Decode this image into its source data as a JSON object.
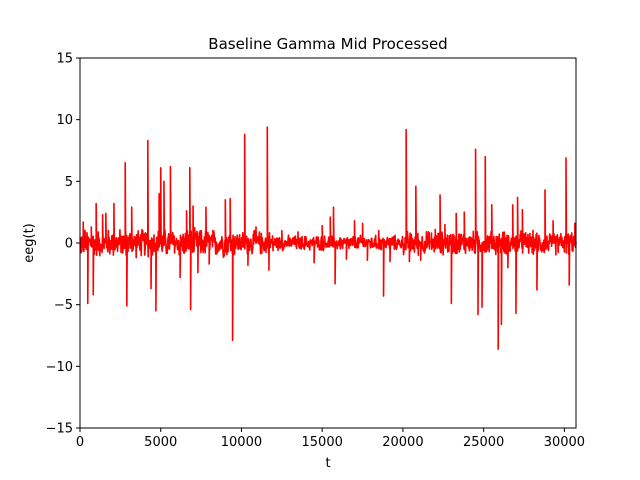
{
  "chart_data": {
    "type": "line",
    "title": "Baseline Gamma Mid Processed",
    "xlabel": "t",
    "ylabel": "eeg(t)",
    "xlim": [
      0,
      30720
    ],
    "ylim": [
      -15,
      15
    ],
    "xticks": [
      0,
      5000,
      10000,
      15000,
      20000,
      25000,
      30000
    ],
    "yticks": [
      -15,
      -10,
      -5,
      0,
      5,
      10,
      15
    ],
    "xtick_labels": [
      "0",
      "5000",
      "10000",
      "15000",
      "20000",
      "25000",
      "30000"
    ],
    "ytick_labels": [
      "−15",
      "−10",
      "−5",
      "0",
      "5",
      "10",
      "15"
    ],
    "grid": false,
    "series": [
      {
        "color": "#ff0000",
        "noise_amplitude_per_region": [
          {
            "from": 0,
            "to": 9600,
            "amp": 1.3
          },
          {
            "from": 9600,
            "to": 12000,
            "amp": 1.1
          },
          {
            "from": 12000,
            "to": 20000,
            "amp": 0.7
          },
          {
            "from": 20000,
            "to": 30720,
            "amp": 1.1
          }
        ],
        "spikes": [
          {
            "x": 200,
            "y": 1.7
          },
          {
            "x": 480,
            "y": -4.9
          },
          {
            "x": 700,
            "y": 1.3
          },
          {
            "x": 820,
            "y": -4.2
          },
          {
            "x": 1000,
            "y": 3.2
          },
          {
            "x": 1400,
            "y": 2.3
          },
          {
            "x": 1600,
            "y": 2.4
          },
          {
            "x": 2100,
            "y": 3.2
          },
          {
            "x": 2800,
            "y": 6.5
          },
          {
            "x": 2900,
            "y": -5.1
          },
          {
            "x": 3200,
            "y": 2.9
          },
          {
            "x": 4200,
            "y": 8.3
          },
          {
            "x": 4400,
            "y": -3.7
          },
          {
            "x": 4700,
            "y": -5.5
          },
          {
            "x": 4900,
            "y": 4.0
          },
          {
            "x": 5000,
            "y": 6.1
          },
          {
            "x": 5200,
            "y": 5.0
          },
          {
            "x": 5600,
            "y": 6.2
          },
          {
            "x": 6200,
            "y": -2.8
          },
          {
            "x": 6600,
            "y": 2.6
          },
          {
            "x": 6800,
            "y": 6.1
          },
          {
            "x": 6850,
            "y": -5.4
          },
          {
            "x": 7000,
            "y": 3.0
          },
          {
            "x": 7300,
            "y": -2.4
          },
          {
            "x": 7800,
            "y": 2.9
          },
          {
            "x": 8000,
            "y": -1.7
          },
          {
            "x": 9000,
            "y": 3.5
          },
          {
            "x": 9300,
            "y": 3.6
          },
          {
            "x": 9450,
            "y": -7.9
          },
          {
            "x": 10200,
            "y": 8.8
          },
          {
            "x": 10400,
            "y": -1.8
          },
          {
            "x": 10900,
            "y": 1.3
          },
          {
            "x": 11600,
            "y": 9.4
          },
          {
            "x": 11700,
            "y": -2.2
          },
          {
            "x": 12500,
            "y": 1.0
          },
          {
            "x": 13500,
            "y": 0.9
          },
          {
            "x": 14500,
            "y": -1.6
          },
          {
            "x": 15000,
            "y": 1.4
          },
          {
            "x": 15500,
            "y": 2.1
          },
          {
            "x": 15700,
            "y": 2.9
          },
          {
            "x": 15800,
            "y": -3.3
          },
          {
            "x": 16500,
            "y": -1.3
          },
          {
            "x": 17000,
            "y": 1.8
          },
          {
            "x": 17500,
            "y": 1.6
          },
          {
            "x": 17800,
            "y": -1.4
          },
          {
            "x": 18500,
            "y": 1.0
          },
          {
            "x": 18800,
            "y": -4.3
          },
          {
            "x": 19200,
            "y": -1.5
          },
          {
            "x": 20200,
            "y": 9.2
          },
          {
            "x": 20400,
            "y": -1.5
          },
          {
            "x": 20800,
            "y": 4.6
          },
          {
            "x": 21100,
            "y": -1.4
          },
          {
            "x": 22000,
            "y": 1.1
          },
          {
            "x": 22300,
            "y": 3.9
          },
          {
            "x": 22600,
            "y": 1.5
          },
          {
            "x": 23000,
            "y": -4.9
          },
          {
            "x": 23300,
            "y": 2.4
          },
          {
            "x": 23800,
            "y": 2.5
          },
          {
            "x": 24500,
            "y": 7.6
          },
          {
            "x": 24650,
            "y": -5.8
          },
          {
            "x": 24900,
            "y": -5.2
          },
          {
            "x": 25100,
            "y": 7.0
          },
          {
            "x": 25500,
            "y": 3.1
          },
          {
            "x": 25900,
            "y": -8.6
          },
          {
            "x": 26100,
            "y": -6.6
          },
          {
            "x": 26500,
            "y": -2.0
          },
          {
            "x": 26800,
            "y": 3.1
          },
          {
            "x": 27000,
            "y": -5.7
          },
          {
            "x": 27100,
            "y": 3.7
          },
          {
            "x": 27400,
            "y": 2.7
          },
          {
            "x": 28300,
            "y": -3.8
          },
          {
            "x": 28800,
            "y": 4.3
          },
          {
            "x": 29300,
            "y": 1.8
          },
          {
            "x": 30100,
            "y": 6.9
          },
          {
            "x": 30300,
            "y": -3.4
          },
          {
            "x": 30650,
            "y": 1.6
          }
        ]
      }
    ]
  }
}
